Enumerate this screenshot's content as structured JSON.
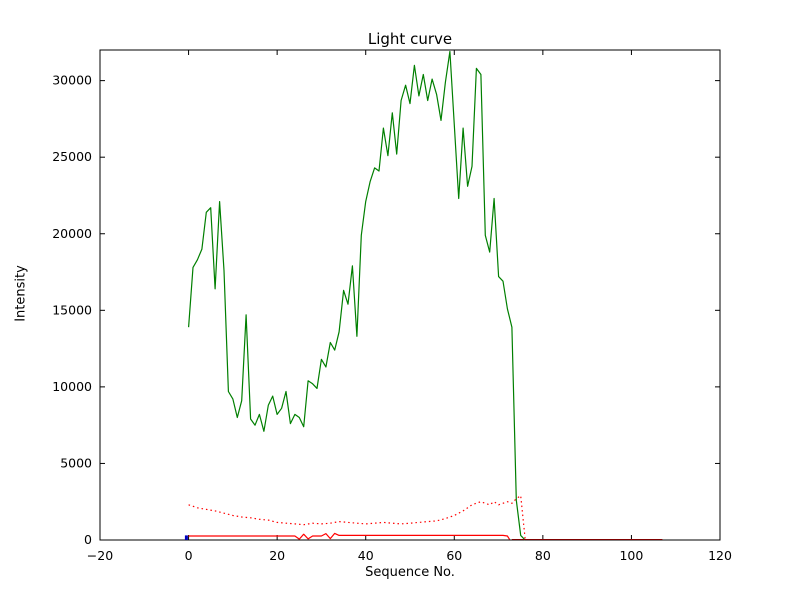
{
  "figure": {
    "background": "#ffffff"
  },
  "chart_data": {
    "type": "line",
    "title": "Light curve",
    "xlabel": "Sequence No.",
    "ylabel": "Intensity",
    "xlim": [
      -20,
      120
    ],
    "ylim": [
      0,
      32000
    ],
    "xticks": [
      -20,
      0,
      20,
      40,
      60,
      80,
      100,
      120
    ],
    "xtick_labels": [
      "−20",
      "0",
      "20",
      "40",
      "60",
      "80",
      "100",
      "120"
    ],
    "yticks": [
      0,
      5000,
      10000,
      15000,
      20000,
      25000,
      30000
    ],
    "ytick_labels": [
      "0",
      "5000",
      "10000",
      "15000",
      "20000",
      "25000",
      "30000"
    ],
    "grid": false,
    "legend_position": "none",
    "frame_color": "#000000",
    "tick_color": "#000000",
    "series": [
      {
        "name": "light-curve-green",
        "color": "#007f00",
        "style": "solid",
        "width": 1.2,
        "points": [
          [
            0,
            13900
          ],
          [
            1,
            17800
          ],
          [
            2,
            18300
          ],
          [
            3,
            19000
          ],
          [
            4,
            21400
          ],
          [
            5,
            21700
          ],
          [
            6,
            16400
          ],
          [
            7,
            22100
          ],
          [
            8,
            17600
          ],
          [
            9,
            9700
          ],
          [
            10,
            9200
          ],
          [
            11,
            8000
          ],
          [
            12,
            9100
          ],
          [
            13,
            14700
          ],
          [
            14,
            7900
          ],
          [
            15,
            7500
          ],
          [
            16,
            8200
          ],
          [
            17,
            7100
          ],
          [
            18,
            8800
          ],
          [
            19,
            9400
          ],
          [
            20,
            8200
          ],
          [
            21,
            8600
          ],
          [
            22,
            9700
          ],
          [
            23,
            7600
          ],
          [
            24,
            8200
          ],
          [
            25,
            8000
          ],
          [
            26,
            7400
          ],
          [
            27,
            10400
          ],
          [
            28,
            10200
          ],
          [
            29,
            9900
          ],
          [
            30,
            11800
          ],
          [
            31,
            11300
          ],
          [
            32,
            12900
          ],
          [
            33,
            12400
          ],
          [
            34,
            13600
          ],
          [
            35,
            16300
          ],
          [
            36,
            15400
          ],
          [
            37,
            17900
          ],
          [
            38,
            13300
          ],
          [
            39,
            19900
          ],
          [
            40,
            22100
          ],
          [
            41,
            23400
          ],
          [
            42,
            24300
          ],
          [
            43,
            24100
          ],
          [
            44,
            26900
          ],
          [
            45,
            25100
          ],
          [
            46,
            27900
          ],
          [
            47,
            25200
          ],
          [
            48,
            28700
          ],
          [
            49,
            29700
          ],
          [
            50,
            28500
          ],
          [
            51,
            31000
          ],
          [
            52,
            29000
          ],
          [
            53,
            30400
          ],
          [
            54,
            28700
          ],
          [
            55,
            30100
          ],
          [
            56,
            29100
          ],
          [
            57,
            27400
          ],
          [
            58,
            29900
          ],
          [
            59,
            31900
          ],
          [
            60,
            27100
          ],
          [
            61,
            22300
          ],
          [
            62,
            26900
          ],
          [
            63,
            23100
          ],
          [
            64,
            24400
          ],
          [
            65,
            30800
          ],
          [
            66,
            30400
          ],
          [
            67,
            19900
          ],
          [
            68,
            18800
          ],
          [
            69,
            22300
          ],
          [
            70,
            17200
          ],
          [
            71,
            16900
          ],
          [
            72,
            15100
          ],
          [
            73,
            13900
          ],
          [
            74,
            2600
          ],
          [
            75,
            300
          ],
          [
            76,
            0
          ]
        ]
      },
      {
        "name": "background-red-dotted",
        "color": "#ff0000",
        "style": "dotted",
        "width": 1.2,
        "points": [
          [
            0,
            2300
          ],
          [
            2,
            2100
          ],
          [
            4,
            2000
          ],
          [
            6,
            1900
          ],
          [
            8,
            1750
          ],
          [
            10,
            1600
          ],
          [
            12,
            1500
          ],
          [
            14,
            1450
          ],
          [
            16,
            1350
          ],
          [
            18,
            1300
          ],
          [
            20,
            1150
          ],
          [
            22,
            1100
          ],
          [
            24,
            1050
          ],
          [
            26,
            1000
          ],
          [
            28,
            1100
          ],
          [
            30,
            1050
          ],
          [
            32,
            1100
          ],
          [
            34,
            1200
          ],
          [
            36,
            1150
          ],
          [
            38,
            1100
          ],
          [
            40,
            1050
          ],
          [
            42,
            1100
          ],
          [
            44,
            1150
          ],
          [
            46,
            1100
          ],
          [
            48,
            1050
          ],
          [
            50,
            1100
          ],
          [
            52,
            1150
          ],
          [
            54,
            1200
          ],
          [
            56,
            1250
          ],
          [
            58,
            1400
          ],
          [
            60,
            1600
          ],
          [
            62,
            1900
          ],
          [
            64,
            2300
          ],
          [
            66,
            2500
          ],
          [
            67,
            2400
          ],
          [
            68,
            2300
          ],
          [
            69,
            2500
          ],
          [
            70,
            2300
          ],
          [
            71,
            2400
          ],
          [
            72,
            2500
          ],
          [
            73,
            2400
          ],
          [
            74,
            2700
          ],
          [
            75,
            2900
          ],
          [
            76,
            100
          ]
        ]
      },
      {
        "name": "noise-red-solid",
        "color": "#ff0000",
        "style": "solid",
        "width": 1.2,
        "points": [
          [
            0,
            260
          ],
          [
            24,
            260
          ],
          [
            25,
            60
          ],
          [
            26,
            380
          ],
          [
            27,
            70
          ],
          [
            28,
            260
          ],
          [
            30,
            260
          ],
          [
            31,
            420
          ],
          [
            32,
            90
          ],
          [
            33,
            430
          ],
          [
            34,
            300
          ],
          [
            36,
            300
          ],
          [
            71,
            300
          ],
          [
            72,
            260
          ],
          [
            72.5,
            40
          ]
        ]
      },
      {
        "name": "baseline-dark-red",
        "color": "#7f0000",
        "style": "solid",
        "width": 1,
        "points": [
          [
            73,
            30
          ],
          [
            107,
            30
          ]
        ]
      },
      {
        "name": "start-marker-blue",
        "color": "#0000bb",
        "style": "solid",
        "width": 3,
        "points": [
          [
            -0.5,
            0
          ],
          [
            -0.5,
            300
          ]
        ]
      }
    ]
  }
}
